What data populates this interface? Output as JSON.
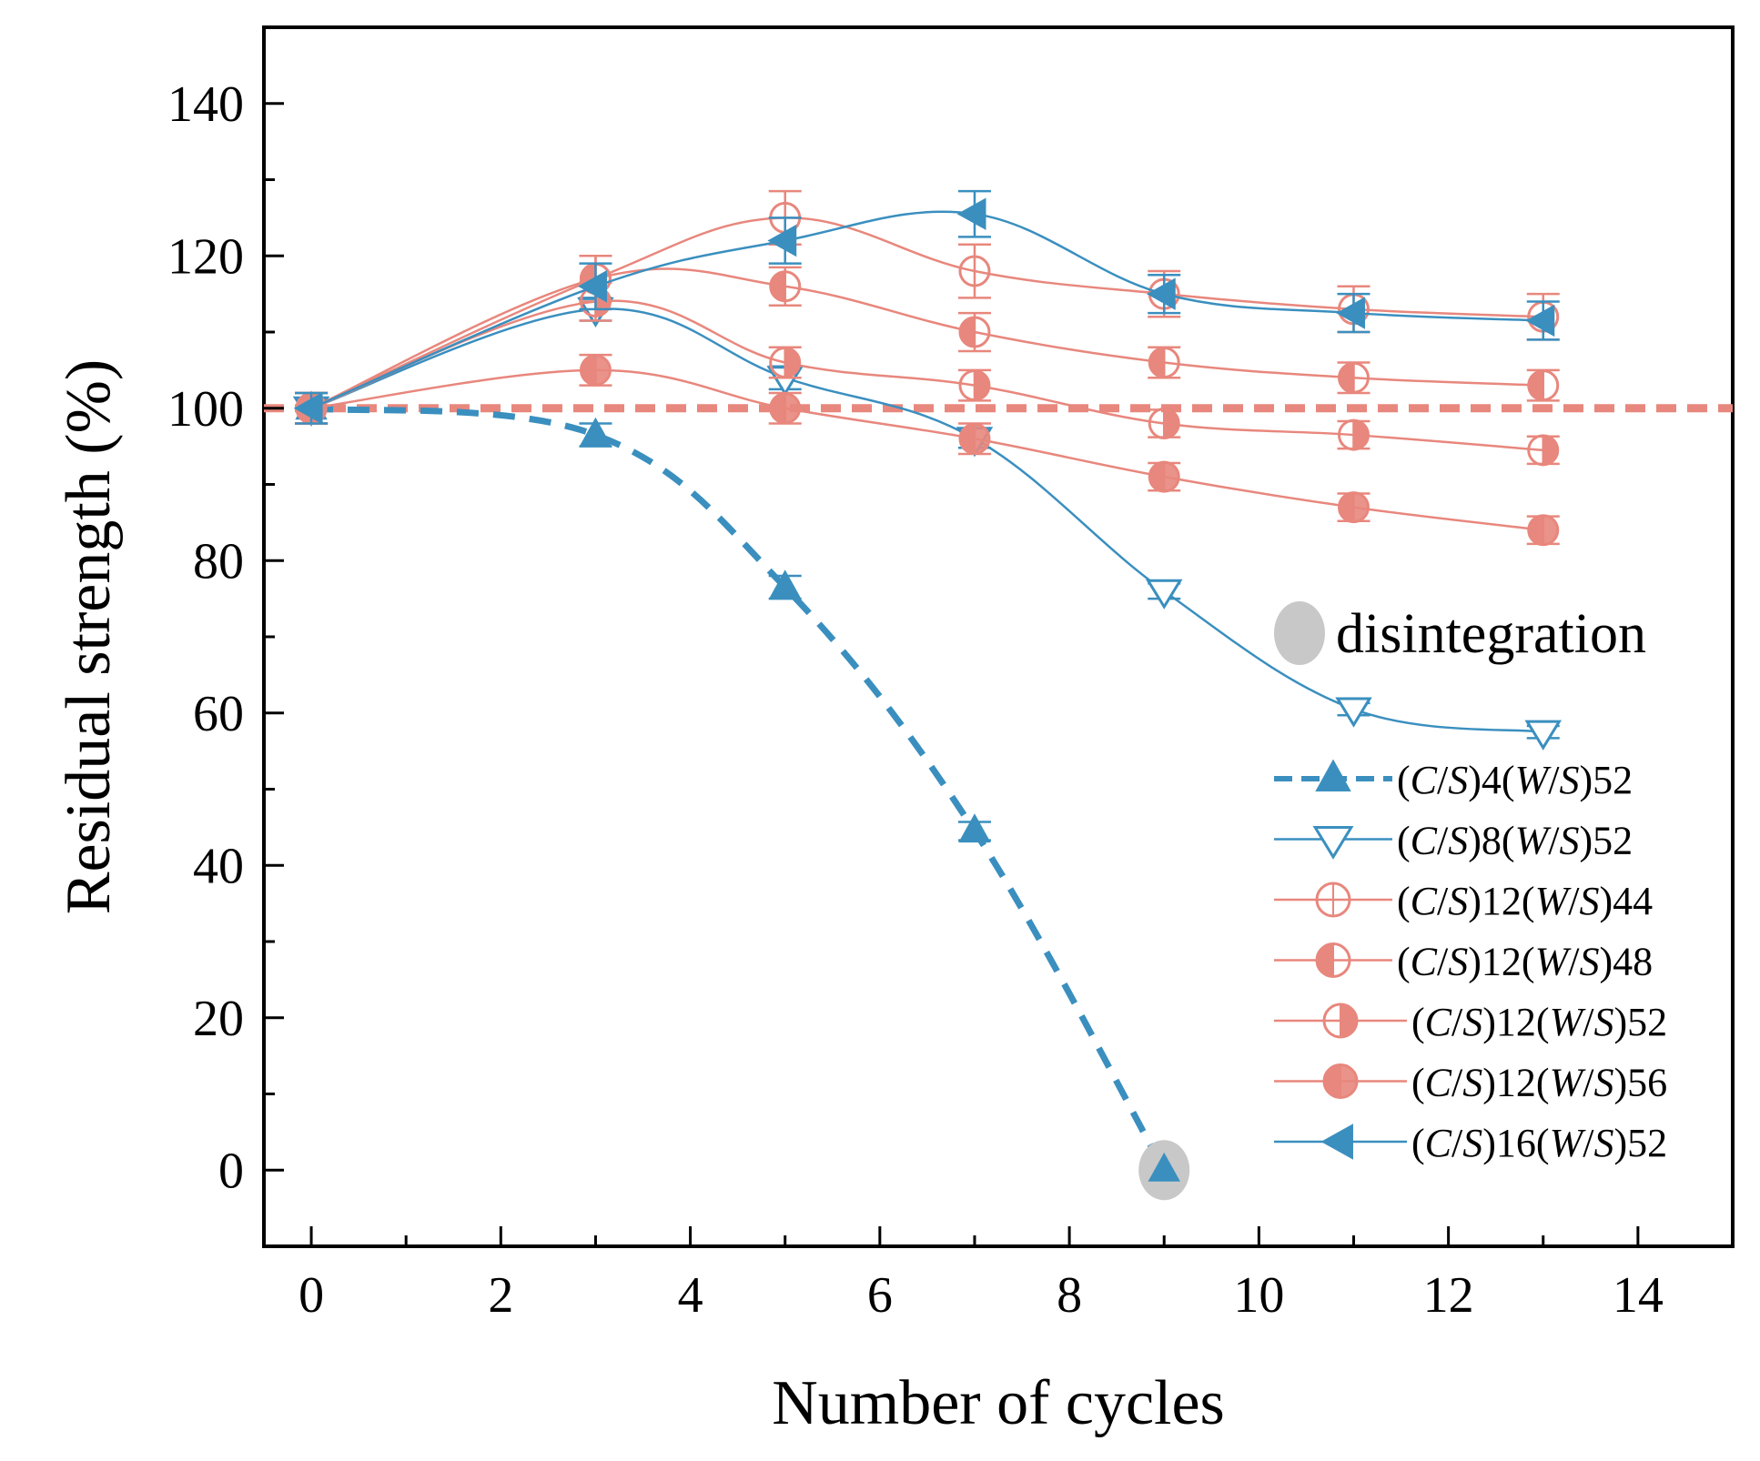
{
  "chart_data": {
    "type": "line",
    "title": "",
    "xlabel": "Number of cycles",
    "ylabel": "Residual strength (%)",
    "xlim": [
      -0.5,
      15
    ],
    "ylim": [
      -10,
      150
    ],
    "xticks": [
      0,
      2,
      4,
      6,
      8,
      10,
      12,
      14
    ],
    "yticks": [
      0,
      20,
      40,
      60,
      80,
      100,
      120,
      140
    ],
    "reference_line": {
      "y": 100,
      "color": "#e8877d",
      "style": "dashed"
    },
    "annotation": {
      "text": "disintegration",
      "marker_color": "#c8c8c8"
    },
    "legend_position": "lower-right",
    "series": [
      {
        "name": "(C/S)4(W/S)52",
        "prefix": "(",
        "c": "C",
        "slash1": "/",
        "s1": "S",
        "mid": ")4(",
        "w": "W",
        "slash2": "/",
        "s2": "S",
        "suffix": ")52",
        "color": "#3a8fbf",
        "marker": "triangle-up",
        "fill": "full",
        "line": "dashed",
        "x": [
          0,
          3,
          5,
          7,
          9
        ],
        "y": [
          100,
          96.5,
          76.5,
          44.5,
          0
        ],
        "err": [
          2,
          1.5,
          1.5,
          1.2,
          0
        ],
        "disintegrated_at": 9
      },
      {
        "name": "(C/S)8(W/S)52",
        "prefix": "(",
        "c": "C",
        "slash1": "/",
        "s1": "S",
        "mid": ")8(",
        "w": "W",
        "slash2": "/",
        "s2": "S",
        "suffix": ")52",
        "color": "#3a8fbf",
        "marker": "triangle-down",
        "fill": "none",
        "line": "solid",
        "x": [
          0,
          3,
          5,
          7,
          9,
          11,
          13
        ],
        "y": [
          100,
          113,
          104,
          96,
          76,
          60.5,
          57.5
        ],
        "err": [
          2,
          1.5,
          1.5,
          1.2,
          1,
          0.8,
          0.8
        ]
      },
      {
        "name": "(C/S)12(W/S)44",
        "prefix": "(",
        "c": "C",
        "slash1": "/",
        "s1": "S",
        "mid": ")12(",
        "w": "W",
        "slash2": "/",
        "s2": "S",
        "suffix": ")44",
        "color": "#e8877d",
        "marker": "circle",
        "fill": "none",
        "line": "solid",
        "x": [
          0,
          3,
          5,
          7,
          9,
          11,
          13
        ],
        "y": [
          100,
          117,
          125,
          118,
          115,
          113,
          112
        ],
        "err": [
          2,
          3,
          3.5,
          3.5,
          3,
          3,
          3
        ]
      },
      {
        "name": "(C/S)12(W/S)48",
        "prefix": "(",
        "c": "C",
        "slash1": "/",
        "s1": "S",
        "mid": ")12(",
        "w": "W",
        "slash2": "/",
        "s2": "S",
        "suffix": ")48",
        "color": "#e8877d",
        "marker": "circle",
        "fill": "left",
        "line": "solid",
        "x": [
          0,
          3,
          5,
          7,
          9,
          11,
          13
        ],
        "y": [
          100,
          117,
          116,
          110,
          106,
          104,
          103
        ],
        "err": [
          2,
          3,
          2.5,
          2.5,
          2,
          2,
          2
        ]
      },
      {
        "name": "(C/S)12(W/S)52",
        "prefix": "(",
        "c": "C",
        "slash1": "/",
        "s1": "S",
        "mid": ")12(",
        "w": "W",
        "slash2": "/",
        "s2": "S",
        "suffix": ")52",
        "color": "#e8877d",
        "marker": "circle",
        "fill": "right",
        "line": "solid",
        "x": [
          0,
          3,
          5,
          7,
          9,
          11,
          13
        ],
        "y": [
          100,
          114,
          106,
          103,
          98,
          96.5,
          94.5
        ],
        "err": [
          2,
          2.5,
          2,
          2,
          1.8,
          1.8,
          1.8
        ]
      },
      {
        "name": "(C/S)12(W/S)56",
        "prefix": "(",
        "c": "C",
        "slash1": "/",
        "s1": "S",
        "mid": ")12(",
        "w": "W",
        "slash2": "/",
        "s2": "S",
        "suffix": ")56",
        "color": "#e8877d",
        "marker": "circle",
        "fill": "left-half-right",
        "line": "solid",
        "x": [
          0,
          3,
          5,
          7,
          9,
          11,
          13
        ],
        "y": [
          100,
          105,
          100,
          96,
          91,
          87,
          84
        ],
        "err": [
          2,
          2,
          2,
          2,
          1.8,
          1.8,
          1.8
        ]
      },
      {
        "name": "(C/S)16(W/S)52",
        "prefix": "(",
        "c": "C",
        "slash1": "/",
        "s1": "S",
        "mid": ")16(",
        "w": "W",
        "slash2": "/",
        "s2": "S",
        "suffix": ")52",
        "color": "#3a8fbf",
        "marker": "triangle-left",
        "fill": "full",
        "line": "solid",
        "x": [
          0,
          3,
          5,
          7,
          9,
          11,
          13
        ],
        "y": [
          100,
          116,
          122,
          125.5,
          115,
          112.5,
          111.5
        ],
        "err": [
          2,
          3,
          3,
          3,
          2.5,
          2.5,
          2.5
        ]
      }
    ]
  }
}
